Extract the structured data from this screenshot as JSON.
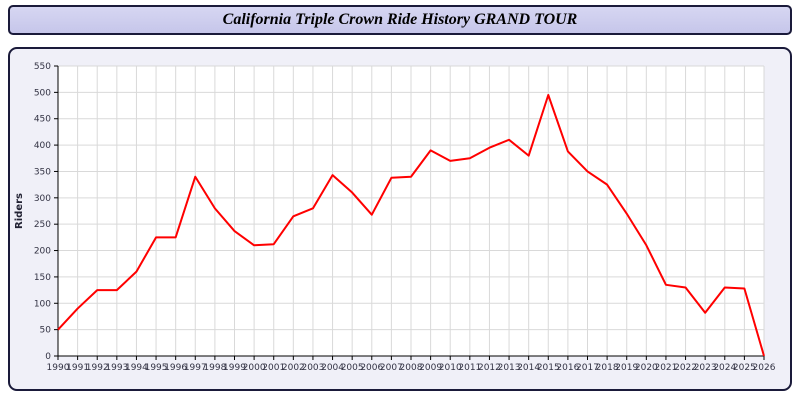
{
  "title_bar": {
    "title": "California Triple Crown Ride History GRAND TOUR"
  },
  "chart_data": {
    "type": "line",
    "title": "California Triple Crown Ride History GRAND TOUR",
    "xlabel": "",
    "ylabel": "Riders",
    "ylim": [
      0,
      550
    ],
    "ytick_step": 50,
    "grid": true,
    "legend": "none",
    "x": [
      1990,
      1991,
      1992,
      1993,
      1994,
      1995,
      1996,
      1997,
      1998,
      1999,
      2000,
      2001,
      2002,
      2003,
      2004,
      2005,
      2006,
      2007,
      2008,
      2009,
      2010,
      2011,
      2012,
      2013,
      2014,
      2015,
      2016,
      2017,
      2018,
      2019,
      2020,
      2021,
      2022,
      2023,
      2024,
      2025,
      2026
    ],
    "series": [
      {
        "name": "Riders",
        "color": "#ff0000",
        "values": [
          50,
          90,
          125,
          125,
          160,
          225,
          225,
          340,
          280,
          237,
          210,
          212,
          265,
          280,
          343,
          310,
          268,
          338,
          340,
          390,
          370,
          375,
          395,
          410,
          380,
          495,
          388,
          350,
          325,
          270,
          210,
          135,
          130,
          82,
          130,
          128,
          0
        ]
      }
    ],
    "colors": {
      "plot_background": "#ffffff",
      "panel_background": "#f0f0f8",
      "gridline": "#d9d9d9",
      "axis": "#000000",
      "title_bar_background": "#ccccee",
      "border": "#1a1a3a"
    }
  }
}
